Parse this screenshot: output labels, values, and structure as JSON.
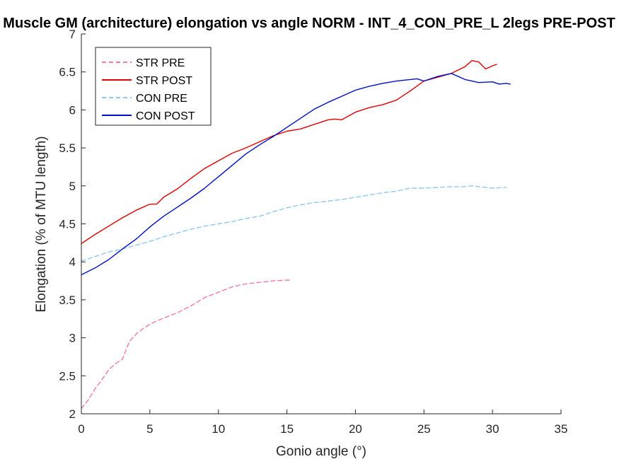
{
  "chart_data": {
    "type": "line",
    "title": "Muscle GM (architecture) elongation vs angle NORM - INT_4_CON_PRE_L 2legs PRE-POST",
    "xlabel": "Gonio angle (°)",
    "ylabel": "Elongation (% of MTU length)",
    "xlim": [
      0,
      35
    ],
    "ylim": [
      2,
      7
    ],
    "xticks": [
      0,
      5,
      10,
      15,
      20,
      25,
      30,
      35
    ],
    "yticks": [
      2,
      2.5,
      3,
      3.5,
      4,
      4.5,
      5,
      5.5,
      6,
      6.5,
      7
    ],
    "xtick_labels": [
      "0",
      "5",
      "10",
      "15",
      "20",
      "25",
      "30",
      "35"
    ],
    "ytick_labels": [
      "2",
      "2.5",
      "3",
      "3.5",
      "4",
      "4.5",
      "5",
      "5.5",
      "6",
      "6.5",
      "7"
    ],
    "grid": false,
    "legend_position": "top-left",
    "series": [
      {
        "name": "STR PRE",
        "color": "#f07ba8",
        "line_style": "dashed",
        "x": [
          0,
          0.5,
          1,
          1.5,
          2,
          2.5,
          3,
          3.5,
          4,
          4.5,
          5,
          6,
          7,
          8,
          9,
          10,
          11,
          12,
          13,
          14,
          15,
          15.3
        ],
        "y": [
          2.07,
          2.18,
          2.33,
          2.45,
          2.58,
          2.66,
          2.72,
          2.95,
          3.05,
          3.12,
          3.18,
          3.26,
          3.33,
          3.42,
          3.53,
          3.6,
          3.67,
          3.71,
          3.73,
          3.75,
          3.76,
          3.76
        ]
      },
      {
        "name": "STR POST",
        "color": "#e00000",
        "line_style": "solid",
        "x": [
          0,
          1,
          2,
          3,
          4,
          5,
          5.5,
          6,
          7,
          8,
          9,
          10,
          11,
          12,
          13,
          14,
          15,
          16,
          17,
          18,
          18.5,
          19,
          20,
          21,
          22,
          23,
          24,
          25,
          26,
          27,
          28,
          28.5,
          29,
          29.5,
          30,
          30.3
        ],
        "y": [
          4.24,
          4.36,
          4.47,
          4.58,
          4.68,
          4.76,
          4.76,
          4.85,
          4.96,
          5.1,
          5.23,
          5.33,
          5.43,
          5.5,
          5.58,
          5.66,
          5.72,
          5.75,
          5.81,
          5.87,
          5.88,
          5.87,
          5.97,
          6.03,
          6.07,
          6.13,
          6.25,
          6.38,
          6.43,
          6.48,
          6.57,
          6.65,
          6.63,
          6.54,
          6.58,
          6.6
        ]
      },
      {
        "name": "CON PRE",
        "color": "#8ec8f5",
        "line_style": "dashed",
        "x": [
          0,
          1,
          2,
          3,
          4,
          5,
          6,
          7,
          8,
          9,
          10,
          11,
          12,
          13,
          14,
          15,
          16,
          17,
          18,
          19,
          20,
          21,
          22,
          23,
          24,
          25,
          26,
          27,
          28,
          28.5,
          29,
          30,
          31
        ],
        "y": [
          4.01,
          4.07,
          4.13,
          4.17,
          4.22,
          4.27,
          4.33,
          4.38,
          4.43,
          4.47,
          4.5,
          4.53,
          4.57,
          4.6,
          4.66,
          4.71,
          4.75,
          4.78,
          4.8,
          4.82,
          4.85,
          4.88,
          4.91,
          4.93,
          4.97,
          4.97,
          4.98,
          4.99,
          4.99,
          5.0,
          4.99,
          4.97,
          4.98
        ]
      },
      {
        "name": "CON POST",
        "color": "#0010c8",
        "line_style": "solid",
        "x": [
          0,
          1,
          2,
          3,
          4,
          5,
          6,
          7,
          8,
          9,
          10,
          11,
          12,
          13,
          14,
          15,
          16,
          17,
          18,
          19,
          20,
          21,
          22,
          23,
          24,
          24.5,
          25,
          26,
          27,
          28,
          29,
          30,
          30.5,
          31,
          31.3
        ],
        "y": [
          3.83,
          3.92,
          4.03,
          4.17,
          4.3,
          4.46,
          4.6,
          4.72,
          4.84,
          4.97,
          5.12,
          5.27,
          5.42,
          5.54,
          5.65,
          5.77,
          5.89,
          6.01,
          6.1,
          6.18,
          6.26,
          6.31,
          6.35,
          6.38,
          6.4,
          6.41,
          6.38,
          6.44,
          6.48,
          6.4,
          6.36,
          6.37,
          6.34,
          6.35,
          6.34
        ]
      }
    ]
  }
}
